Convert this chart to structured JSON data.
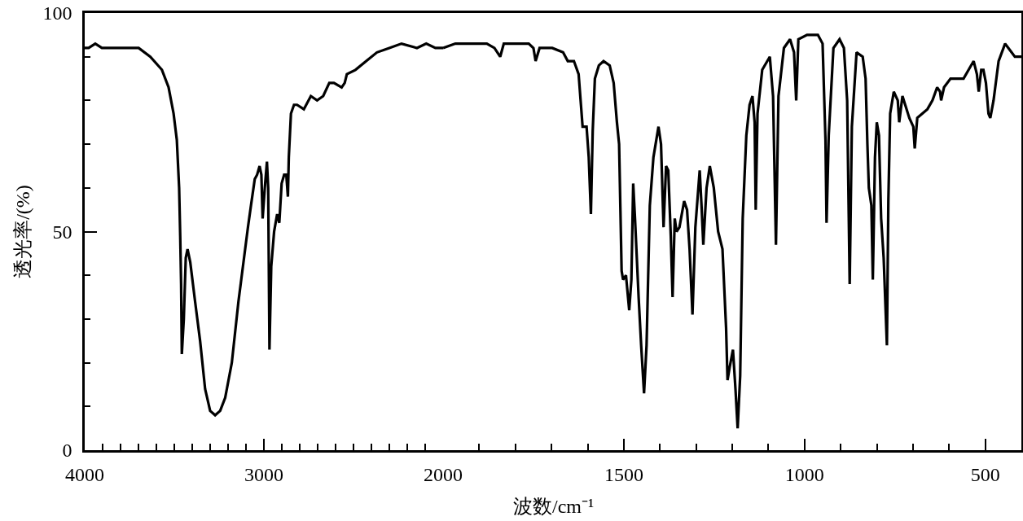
{
  "chart_data": [
    {
      "type": "line",
      "ylabel": "透光率/(%)",
      "xlim": [
        4000,
        2000
      ],
      "ylim": [
        0,
        100
      ],
      "xticks": [
        4000,
        {
          "value": 3900,
          "label": null
        },
        {
          "value": 3800,
          "label": null
        },
        {
          "value": 3700,
          "label": null
        },
        {
          "value": 3600,
          "label": null
        },
        {
          "value": 3500,
          "label": null
        },
        {
          "value": 3400,
          "label": null
        },
        {
          "value": 3300,
          "label": null
        },
        {
          "value": 3200,
          "label": null
        },
        {
          "value": 3100,
          "label": null
        },
        3000,
        {
          "value": 2900,
          "label": null
        },
        {
          "value": 2800,
          "label": null
        },
        {
          "value": 2700,
          "label": null
        },
        {
          "value": 2600,
          "label": null
        },
        {
          "value": 2500,
          "label": null
        },
        {
          "value": 2400,
          "label": null
        },
        {
          "value": 2300,
          "label": null
        },
        {
          "value": 2200,
          "label": null
        },
        {
          "value": 2100,
          "label": null
        },
        2000
      ],
      "yticks": [
        0,
        {
          "value": 10,
          "label": null
        },
        {
          "value": 20,
          "label": null
        },
        {
          "value": 30,
          "label": null
        },
        {
          "value": 40,
          "label": null
        },
        50,
        {
          "value": 60,
          "label": null
        },
        {
          "value": 70,
          "label": null
        },
        {
          "value": 80,
          "label": null
        },
        {
          "value": 90,
          "label": null
        },
        100
      ],
      "x": [
        4000,
        3978,
        3941,
        3904,
        3839,
        3699,
        3634,
        3569,
        3532,
        3504,
        3486,
        3473,
        3467,
        3462,
        3458,
        3447,
        3436,
        3426,
        3411,
        3384,
        3356,
        3328,
        3300,
        3272,
        3244,
        3216,
        3179,
        3142,
        3089,
        3072,
        3051,
        3038,
        3024,
        3014,
        3007,
        2995,
        2983,
        2976,
        2969,
        2959,
        2943,
        2926,
        2914,
        2901,
        2887,
        2875,
        2866,
        2861,
        2849,
        2832,
        2815,
        2777,
        2738,
        2703,
        2669,
        2635,
        2609,
        2566,
        2549,
        2537,
        2489,
        2429,
        2369,
        2300,
        2232,
        2146,
        2094,
        2043,
        2000
      ],
      "series": [
        {
          "color": "#000000",
          "values": [
            92,
            92,
            93,
            92,
            92,
            92,
            90,
            87,
            83,
            77,
            71,
            60,
            49,
            38,
            22,
            30,
            44,
            46,
            43,
            34,
            25,
            14,
            9,
            8,
            9,
            12,
            20,
            34,
            51,
            56,
            62,
            63,
            65,
            63,
            53,
            60,
            66,
            60,
            23,
            42,
            50,
            54,
            52,
            61,
            63,
            63,
            58,
            67,
            77,
            79,
            79,
            78,
            81,
            80,
            81,
            84,
            84,
            83,
            84,
            86,
            87,
            89,
            91,
            92,
            93,
            92,
            93,
            92,
            92
          ]
        }
      ]
    },
    {
      "type": "line",
      "xlabel": "波数/cm⁻¹",
      "xlim": [
        2000,
        400
      ],
      "ylim": [
        0,
        100
      ],
      "tick_labels": "x",
      "xticks": [
        {
          "value": 1900,
          "label": null
        },
        {
          "value": 1800,
          "label": null
        },
        {
          "value": 1700,
          "label": null
        },
        {
          "value": 1600,
          "label": null
        },
        1500,
        {
          "value": 1400,
          "label": null
        },
        {
          "value": 1300,
          "label": null
        },
        {
          "value": 1200,
          "label": null
        },
        {
          "value": 1100,
          "label": null
        },
        1000,
        {
          "value": 900,
          "label": null
        },
        {
          "value": 800,
          "label": null
        },
        {
          "value": 700,
          "label": null
        },
        {
          "value": 600,
          "label": null
        },
        500
      ],
      "x": [
        2000,
        1966,
        1922,
        1879,
        1858,
        1842,
        1832,
        1810,
        1763,
        1750,
        1744,
        1733,
        1698,
        1668,
        1655,
        1638,
        1625,
        1614,
        1603,
        1597,
        1591,
        1586,
        1580,
        1569,
        1556,
        1539,
        1528,
        1519,
        1513,
        1506,
        1502,
        1494,
        1485,
        1479,
        1474,
        1469,
        1459,
        1452,
        1444,
        1437,
        1428,
        1418,
        1404,
        1397,
        1390,
        1383,
        1377,
        1370,
        1365,
        1359,
        1354,
        1346,
        1333,
        1325,
        1318,
        1310,
        1302,
        1290,
        1285,
        1280,
        1271,
        1262,
        1251,
        1239,
        1227,
        1217,
        1213,
        1207,
        1198,
        1191,
        1185,
        1178,
        1171,
        1161,
        1152,
        1144,
        1138,
        1135,
        1130,
        1117,
        1096,
        1087,
        1079,
        1072,
        1057,
        1040,
        1029,
        1023,
        1017,
        993,
        963,
        950,
        942,
        939,
        933,
        920,
        903,
        891,
        882,
        875,
        869,
        856,
        839,
        831,
        826,
        822,
        815,
        811,
        805,
        800,
        794,
        788,
        781,
        772,
        768,
        763,
        753,
        742,
        738,
        729,
        710,
        699,
        695,
        688,
        674,
        660,
        646,
        633,
        625,
        622,
        614,
        596,
        578,
        560,
        546,
        532,
        523,
        518,
        511,
        505,
        498,
        491,
        486,
        477,
        463,
        445,
        436,
        418,
        400
      ],
      "series": [
        {
          "color": "#000000",
          "values": [
            92,
            93,
            93,
            93,
            92,
            90,
            93,
            93,
            93,
            92,
            89,
            92,
            92,
            91,
            89,
            89,
            86,
            74,
            74,
            67,
            54,
            73,
            85,
            88,
            89,
            88,
            84,
            75,
            70,
            41,
            39,
            40,
            32,
            39,
            61,
            53,
            35,
            24,
            13,
            24,
            56,
            67,
            74,
            70,
            51,
            65,
            64,
            49,
            35,
            53,
            50,
            51,
            57,
            55,
            46,
            31,
            51,
            64,
            56,
            47,
            60,
            65,
            60,
            50,
            46,
            28,
            16,
            19,
            23,
            14,
            5,
            17,
            53,
            72,
            79,
            81,
            75,
            55,
            77,
            87,
            90,
            81,
            47,
            81,
            92,
            94,
            91,
            80,
            94,
            95,
            95,
            93,
            71,
            52,
            72,
            92,
            94,
            92,
            80,
            38,
            74,
            91,
            90,
            85,
            70,
            60,
            56,
            39,
            67,
            75,
            72,
            53,
            44,
            24,
            57,
            77,
            82,
            80,
            75,
            81,
            76,
            74,
            69,
            76,
            77,
            78,
            80,
            83,
            82,
            80,
            83,
            85,
            85,
            85,
            87,
            89,
            86,
            82,
            87,
            87,
            84,
            77,
            76,
            80,
            89,
            93,
            92,
            90,
            90
          ]
        }
      ]
    }
  ]
}
